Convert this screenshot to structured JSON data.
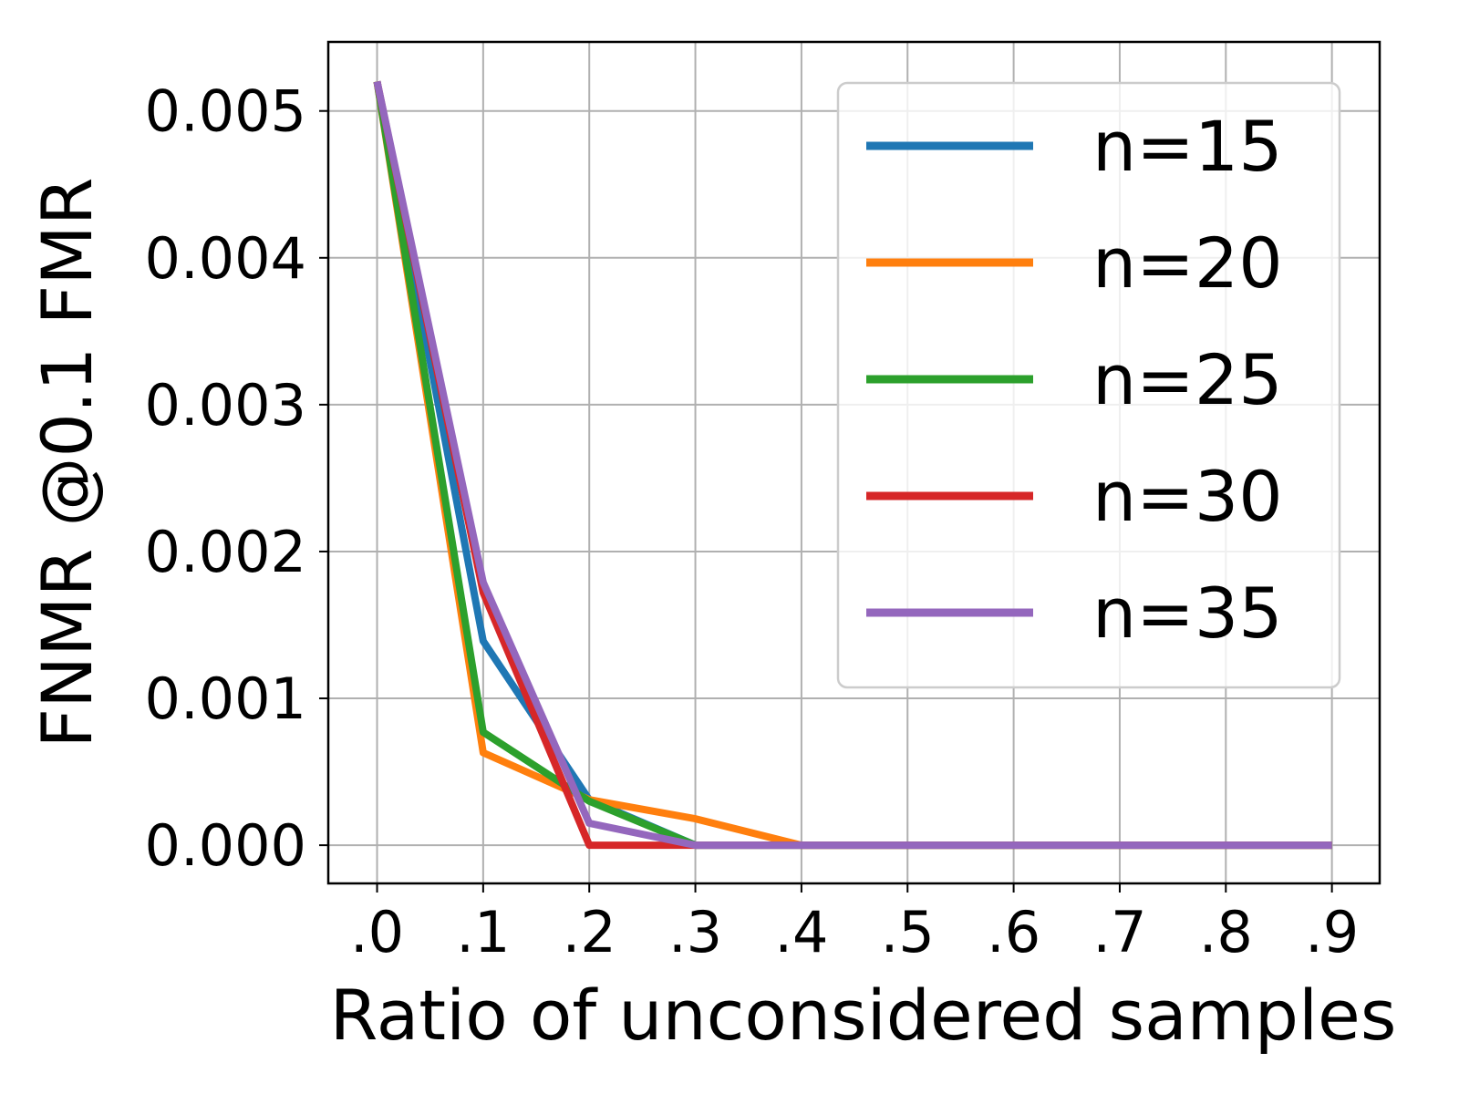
{
  "chart_data": {
    "type": "line",
    "title": "",
    "xlabel": "Ratio of unconsidered samples",
    "ylabel": "FNMR @0.1 FMR",
    "x": [
      0.0,
      0.1,
      0.2,
      0.3,
      0.4,
      0.5,
      0.6,
      0.7,
      0.8,
      0.9
    ],
    "x_tick_labels": [
      ".0",
      ".1",
      ".2",
      ".3",
      ".4",
      ".5",
      ".6",
      ".7",
      ".8",
      ".9"
    ],
    "y_ticks": [
      0.0,
      0.001,
      0.002,
      0.003,
      0.004,
      0.005
    ],
    "y_tick_labels": [
      "0.000",
      "0.001",
      "0.002",
      "0.003",
      "0.004",
      "0.005"
    ],
    "xlim": [
      -0.046,
      0.945
    ],
    "ylim": [
      -0.00026,
      0.00547
    ],
    "grid": true,
    "legend_position": "top-right",
    "series": [
      {
        "name": "n=15",
        "color": "#1f77b4",
        "values": [
          0.0052,
          0.00139,
          0.00031,
          0.0,
          0.0,
          0.0,
          0.0,
          0.0,
          0.0,
          0.0
        ]
      },
      {
        "name": "n=20",
        "color": "#ff7f0e",
        "values": [
          0.0052,
          0.00063,
          0.00031,
          0.00018,
          0.0,
          0.0,
          0.0,
          0.0,
          0.0,
          0.0
        ]
      },
      {
        "name": "n=25",
        "color": "#2ca02c",
        "values": [
          0.0052,
          0.00077,
          0.0003,
          0.0,
          0.0,
          0.0,
          0.0,
          0.0,
          0.0,
          0.0
        ]
      },
      {
        "name": "n=30",
        "color": "#d62728",
        "values": [
          0.0052,
          0.00172,
          0.0,
          0.0,
          0.0,
          0.0,
          0.0,
          0.0,
          0.0,
          0.0
        ]
      },
      {
        "name": "n=35",
        "color": "#9467bd",
        "values": [
          0.0052,
          0.00179,
          0.00015,
          0.0,
          0.0,
          0.0,
          0.0,
          0.0,
          0.0,
          0.0
        ]
      }
    ]
  }
}
